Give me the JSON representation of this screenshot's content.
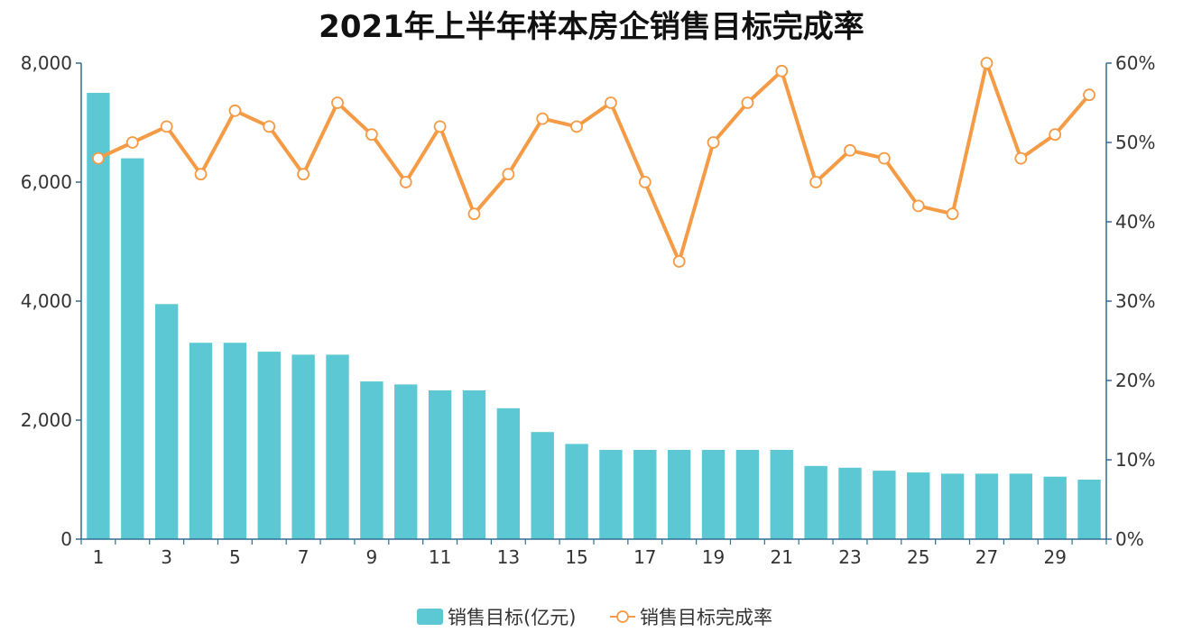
{
  "chart_data": {
    "type": "bar",
    "title": "2021年上半年样本房企销售目标完成率",
    "categories": [
      "1",
      "2",
      "3",
      "4",
      "5",
      "6",
      "7",
      "8",
      "9",
      "10",
      "11",
      "12",
      "13",
      "14",
      "15",
      "16",
      "17",
      "18",
      "19",
      "20",
      "21",
      "22",
      "23",
      "24",
      "25",
      "26",
      "27",
      "28",
      "29",
      "30"
    ],
    "x_tick_labels": [
      "1",
      "3",
      "5",
      "7",
      "9",
      "11",
      "13",
      "15",
      "17",
      "19",
      "21",
      "23",
      "25",
      "27",
      "29"
    ],
    "series": [
      {
        "name": "销售目标(亿元)",
        "type": "bar",
        "axis": "left",
        "color": "#5bc8d4",
        "values": [
          7500,
          6400,
          3950,
          3300,
          3300,
          3150,
          3100,
          3100,
          2650,
          2600,
          2500,
          2500,
          2200,
          1800,
          1600,
          1500,
          1500,
          1500,
          1500,
          1500,
          1500,
          1230,
          1200,
          1150,
          1120,
          1100,
          1100,
          1100,
          1050,
          1000
        ]
      },
      {
        "name": "销售目标完成率",
        "type": "line",
        "axis": "right",
        "color": "#f59a45",
        "values": [
          48,
          50,
          52,
          46,
          54,
          52,
          46,
          55,
          51,
          45,
          52,
          41,
          46,
          53,
          52,
          55,
          45,
          35,
          50,
          55,
          59,
          45,
          49,
          48,
          42,
          41,
          60,
          48,
          51,
          56
        ]
      }
    ],
    "left_axis": {
      "ylim": [
        0,
        8000
      ],
      "ticks": [
        0,
        2000,
        4000,
        6000,
        8000
      ],
      "tick_labels": [
        "0",
        "2,000",
        "4,000",
        "6,000",
        "8,000"
      ]
    },
    "right_axis": {
      "ylim": [
        0,
        60
      ],
      "ticks": [
        0,
        10,
        20,
        30,
        40,
        50,
        60
      ],
      "tick_labels": [
        "0%",
        "10%",
        "20%",
        "30%",
        "40%",
        "50%",
        "60%"
      ]
    },
    "grid": false,
    "legend": "bottom-center"
  }
}
